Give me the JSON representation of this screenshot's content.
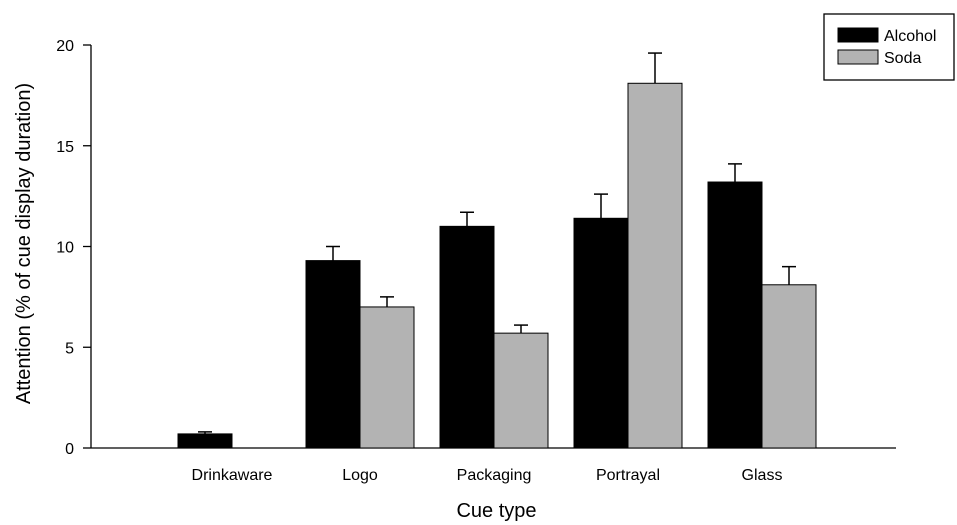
{
  "chart_data": {
    "type": "bar",
    "title": "",
    "xlabel": "Cue type",
    "ylabel": "Attention (% of cue display duration)",
    "ylim": [
      0,
      20
    ],
    "yticks": [
      0,
      5,
      10,
      15,
      20
    ],
    "categories": [
      "Drinkaware",
      "Logo",
      "Packaging",
      "Portrayal",
      "Glass"
    ],
    "series": [
      {
        "name": "Alcohol",
        "color": "#000000",
        "values": [
          0.7,
          9.3,
          11.0,
          11.4,
          13.2
        ],
        "error": [
          0.1,
          0.7,
          0.7,
          1.2,
          0.9
        ]
      },
      {
        "name": "Soda",
        "color": "#b3b3b3",
        "values": [
          null,
          7.0,
          5.7,
          18.1,
          8.1
        ],
        "error": [
          null,
          0.5,
          0.4,
          1.5,
          0.9
        ]
      }
    ],
    "legend_position": "top-right",
    "grid": false
  }
}
